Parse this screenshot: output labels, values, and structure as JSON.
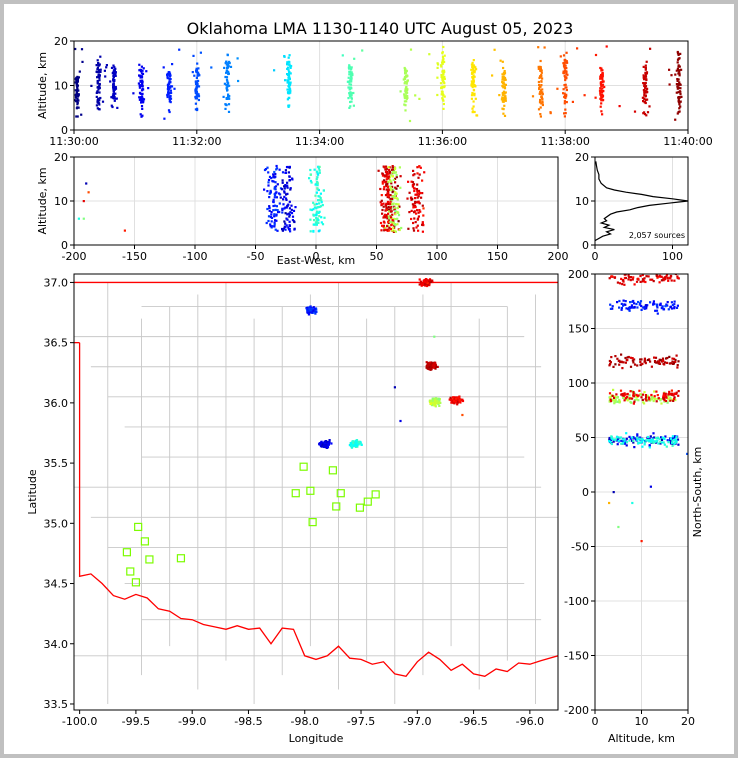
{
  "chart_data": [
    {
      "panel": "time-altitude",
      "type": "scatter",
      "title": "Oklahoma LMA 1130-1140 UTC August 05, 2023",
      "ylabel": "Altitude, km",
      "ylim": [
        0,
        20
      ],
      "xlim_minutes": [
        0,
        10
      ],
      "xtick_labels": [
        "11:30:00",
        "11:32:00",
        "11:34:00",
        "11:36:00",
        "11:38:00",
        "11:40:00"
      ],
      "ytick_labels": [
        "0",
        "10",
        "20"
      ],
      "color_by": "time",
      "colormap": "jet",
      "clusters": [
        {
          "t_min": 0.05,
          "alt": [
            3,
            12
          ]
        },
        {
          "t_min": 0.4,
          "alt": [
            3,
            17
          ]
        },
        {
          "t_min": 0.65,
          "alt": [
            4,
            15
          ]
        },
        {
          "t_min": 1.1,
          "alt": [
            3,
            15
          ]
        },
        {
          "t_min": 1.55,
          "alt": [
            4,
            14
          ]
        },
        {
          "t_min": 2.0,
          "alt": [
            4,
            15
          ]
        },
        {
          "t_min": 2.5,
          "alt": [
            4,
            17
          ]
        },
        {
          "t_min": 3.5,
          "alt": [
            5,
            17
          ]
        },
        {
          "t_min": 4.5,
          "alt": [
            4,
            15
          ]
        },
        {
          "t_min": 5.4,
          "alt": [
            4,
            14
          ]
        },
        {
          "t_min": 6.0,
          "alt": [
            4,
            19
          ]
        },
        {
          "t_min": 6.5,
          "alt": [
            4,
            16
          ]
        },
        {
          "t_min": 7.0,
          "alt": [
            3,
            14
          ]
        },
        {
          "t_min": 7.6,
          "alt": [
            3,
            16
          ]
        },
        {
          "t_min": 8.0,
          "alt": [
            3,
            18
          ]
        },
        {
          "t_min": 8.6,
          "alt": [
            3,
            14
          ]
        },
        {
          "t_min": 9.3,
          "alt": [
            3,
            16
          ]
        },
        {
          "t_min": 9.85,
          "alt": [
            3,
            19
          ]
        }
      ]
    },
    {
      "panel": "east-west-altitude",
      "type": "scatter",
      "xlabel": "East-West, km",
      "ylabel": "Altitude, km",
      "xlim": [
        -200,
        200
      ],
      "ylim": [
        0,
        20
      ],
      "xtick_labels": [
        "-200",
        "-150",
        "-100",
        "-50",
        "0",
        "50",
        "100",
        "150",
        "200"
      ],
      "ytick_labels": [
        "0",
        "10",
        "20"
      ],
      "grid": true
    },
    {
      "panel": "altitude-histogram",
      "type": "line",
      "annotation": "2,057 sources",
      "xlim": [
        0,
        120
      ],
      "ylim": [
        0,
        20
      ],
      "xtick_labels": [
        "0",
        "100"
      ],
      "ytick_labels": [
        "0",
        "10",
        "20"
      ],
      "profile": [
        {
          "alt": 1.0,
          "count": 0
        },
        {
          "alt": 2.0,
          "count": 10
        },
        {
          "alt": 2.5,
          "count": 20
        },
        {
          "alt": 3.0,
          "count": 15
        },
        {
          "alt": 3.5,
          "count": 25
        },
        {
          "alt": 4.0,
          "count": 12
        },
        {
          "alt": 4.5,
          "count": 18
        },
        {
          "alt": 5.0,
          "count": 8
        },
        {
          "alt": 5.5,
          "count": 15
        },
        {
          "alt": 6.0,
          "count": 12
        },
        {
          "alt": 7.0,
          "count": 20
        },
        {
          "alt": 7.5,
          "count": 28
        },
        {
          "alt": 8.0,
          "count": 45
        },
        {
          "alt": 8.5,
          "count": 55
        },
        {
          "alt": 9.0,
          "count": 70
        },
        {
          "alt": 9.5,
          "count": 95
        },
        {
          "alt": 10.0,
          "count": 120
        },
        {
          "alt": 10.5,
          "count": 100
        },
        {
          "alt": 11.0,
          "count": 75
        },
        {
          "alt": 11.5,
          "count": 60
        },
        {
          "alt": 12.0,
          "count": 40
        },
        {
          "alt": 12.5,
          "count": 25
        },
        {
          "alt": 13.0,
          "count": 15
        },
        {
          "alt": 14.0,
          "count": 8
        },
        {
          "alt": 15.0,
          "count": 5
        },
        {
          "alt": 16.0,
          "count": 5
        },
        {
          "alt": 17.0,
          "count": 3
        },
        {
          "alt": 18.0,
          "count": 2
        },
        {
          "alt": 19.0,
          "count": 1
        }
      ]
    },
    {
      "panel": "plan-view-map",
      "type": "scatter",
      "xlabel": "Longitude",
      "ylabel": "Latitude",
      "xlim": [
        -100.05,
        -95.75
      ],
      "ylim": [
        33.45,
        37.07
      ],
      "xtick_labels": [
        "-100.0",
        "-99.5",
        "-99.0",
        "-98.5",
        "-98.0",
        "-97.5",
        "-97.0",
        "-96.5",
        "-96.0"
      ],
      "ytick_labels": [
        "33.5",
        "34.0",
        "34.5",
        "35.0",
        "35.5",
        "36.0",
        "36.5",
        "37.0"
      ],
      "stations": [
        [
          -99.48,
          34.97
        ],
        [
          -99.42,
          34.85
        ],
        [
          -99.58,
          34.76
        ],
        [
          -99.38,
          34.7
        ],
        [
          -99.1,
          34.71
        ],
        [
          -99.55,
          34.6
        ],
        [
          -99.5,
          34.51
        ],
        [
          -98.01,
          35.47
        ],
        [
          -97.75,
          35.44
        ],
        [
          -98.08,
          35.25
        ],
        [
          -97.95,
          35.27
        ],
        [
          -97.68,
          35.25
        ],
        [
          -97.37,
          35.24
        ],
        [
          -97.44,
          35.18
        ],
        [
          -97.72,
          35.14
        ],
        [
          -97.51,
          35.13
        ],
        [
          -97.93,
          35.01
        ]
      ],
      "storm_cells": [
        {
          "lon": -97.95,
          "lat": 36.77,
          "time_frac": 0.15
        },
        {
          "lon": -97.82,
          "lat": 35.66,
          "time_frac": 0.1
        },
        {
          "lon": -97.55,
          "lat": 35.66,
          "time_frac": 0.4
        },
        {
          "lon": -96.88,
          "lat": 36.31,
          "time_frac": 0.95
        },
        {
          "lon": -96.85,
          "lat": 36.01,
          "time_frac": 0.55
        },
        {
          "lon": -96.65,
          "lat": 36.02,
          "time_frac": 0.9
        },
        {
          "lon": -96.92,
          "lat": 37.0,
          "time_frac": 0.9
        }
      ]
    },
    {
      "panel": "altitude-north-south",
      "type": "scatter",
      "xlabel": "Altitude, km",
      "ylabel": "North-South, km",
      "xlim": [
        0,
        20
      ],
      "ylim": [
        -200,
        200
      ],
      "xtick_labels": [
        "0",
        "10",
        "20"
      ],
      "ytick_labels": [
        "-200",
        "-150",
        "-100",
        "-50",
        "0",
        "50",
        "100",
        "150",
        "200"
      ]
    }
  ]
}
